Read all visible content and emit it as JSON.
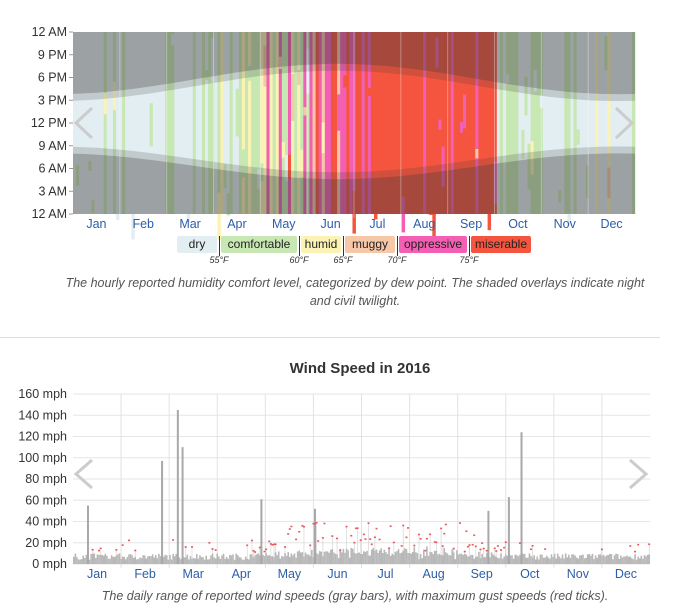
{
  "humidity": {
    "caption": "The hourly reported humidity comfort level, categorized by dew point. The shaded overlays indicate night and civil twilight.",
    "legend": [
      {
        "label": "dry",
        "color": "#e3eef2"
      },
      {
        "label": "comfortable",
        "color": "#c7e8b3"
      },
      {
        "label": "humid",
        "color": "#fbf3b4"
      },
      {
        "label": "muggy",
        "color": "#f7c8a8"
      },
      {
        "label": "oppressive",
        "color": "#f25fb3"
      },
      {
        "label": "miserable",
        "color": "#f5553e"
      }
    ],
    "thresholds": [
      "55°F",
      "60°F",
      "65°F",
      "70°F",
      "75°F"
    ],
    "nav": {
      "prev": "previous-arrow",
      "next": "next-arrow"
    }
  },
  "wind": {
    "caption": "The daily range of reported wind speeds (gray bars), with maximum gust speeds (red ticks).",
    "bar_color": "#b8b8b8",
    "gust_color": "#e85a5a"
  },
  "chart_data": [
    {
      "type": "heatmap",
      "title": "",
      "x_tick_labels": [
        "Jan",
        "Feb",
        "Mar",
        "Apr",
        "May",
        "Jun",
        "Jul",
        "Aug",
        "Sep",
        "Oct",
        "Nov",
        "Dec"
      ],
      "y_tick_labels": [
        "12 AM",
        "9 PM",
        "6 PM",
        "3 PM",
        "12 PM",
        "9 AM",
        "6 AM",
        "3 AM",
        "12 AM"
      ],
      "categories": [
        "dry",
        "comfortable",
        "humid",
        "muggy",
        "oppressive",
        "miserable"
      ],
      "dominant_by_month": [
        "dry",
        "dry",
        "comfortable",
        "comfortable",
        "humid",
        "oppressive",
        "miserable",
        "miserable",
        "miserable",
        "comfortable",
        "dry",
        "dry"
      ],
      "night_shading": true
    },
    {
      "type": "bar",
      "title": "Wind Speed in 2016",
      "ylabel": "",
      "y_tick_labels": [
        "160 mph",
        "140 mph",
        "120 mph",
        "100 mph",
        "80 mph",
        "60 mph",
        "40 mph",
        "20 mph",
        "0 mph"
      ],
      "x_tick_labels": [
        "Jan",
        "Feb",
        "Mar",
        "Apr",
        "May",
        "Jun",
        "Jul",
        "Aug",
        "Sep",
        "Oct",
        "Nov",
        "Dec"
      ],
      "ylim": [
        0,
        160
      ],
      "series": [
        {
          "name": "wind speed range",
          "notable_spikes_mph": [
            {
              "x": "2016-01-10",
              "y": 55
            },
            {
              "x": "2016-02-26",
              "y": 97
            },
            {
              "x": "2016-03-07",
              "y": 145
            },
            {
              "x": "2016-03-10",
              "y": 110
            },
            {
              "x": "2016-04-29",
              "y": 61
            },
            {
              "x": "2016-06-02",
              "y": 52
            },
            {
              "x": "2016-09-20",
              "y": 50
            },
            {
              "x": "2016-10-03",
              "y": 63
            },
            {
              "x": "2016-10-11",
              "y": 124
            }
          ]
        },
        {
          "name": "maximum gust speed",
          "typical_range_mph": [
            15,
            40
          ]
        }
      ]
    }
  ]
}
